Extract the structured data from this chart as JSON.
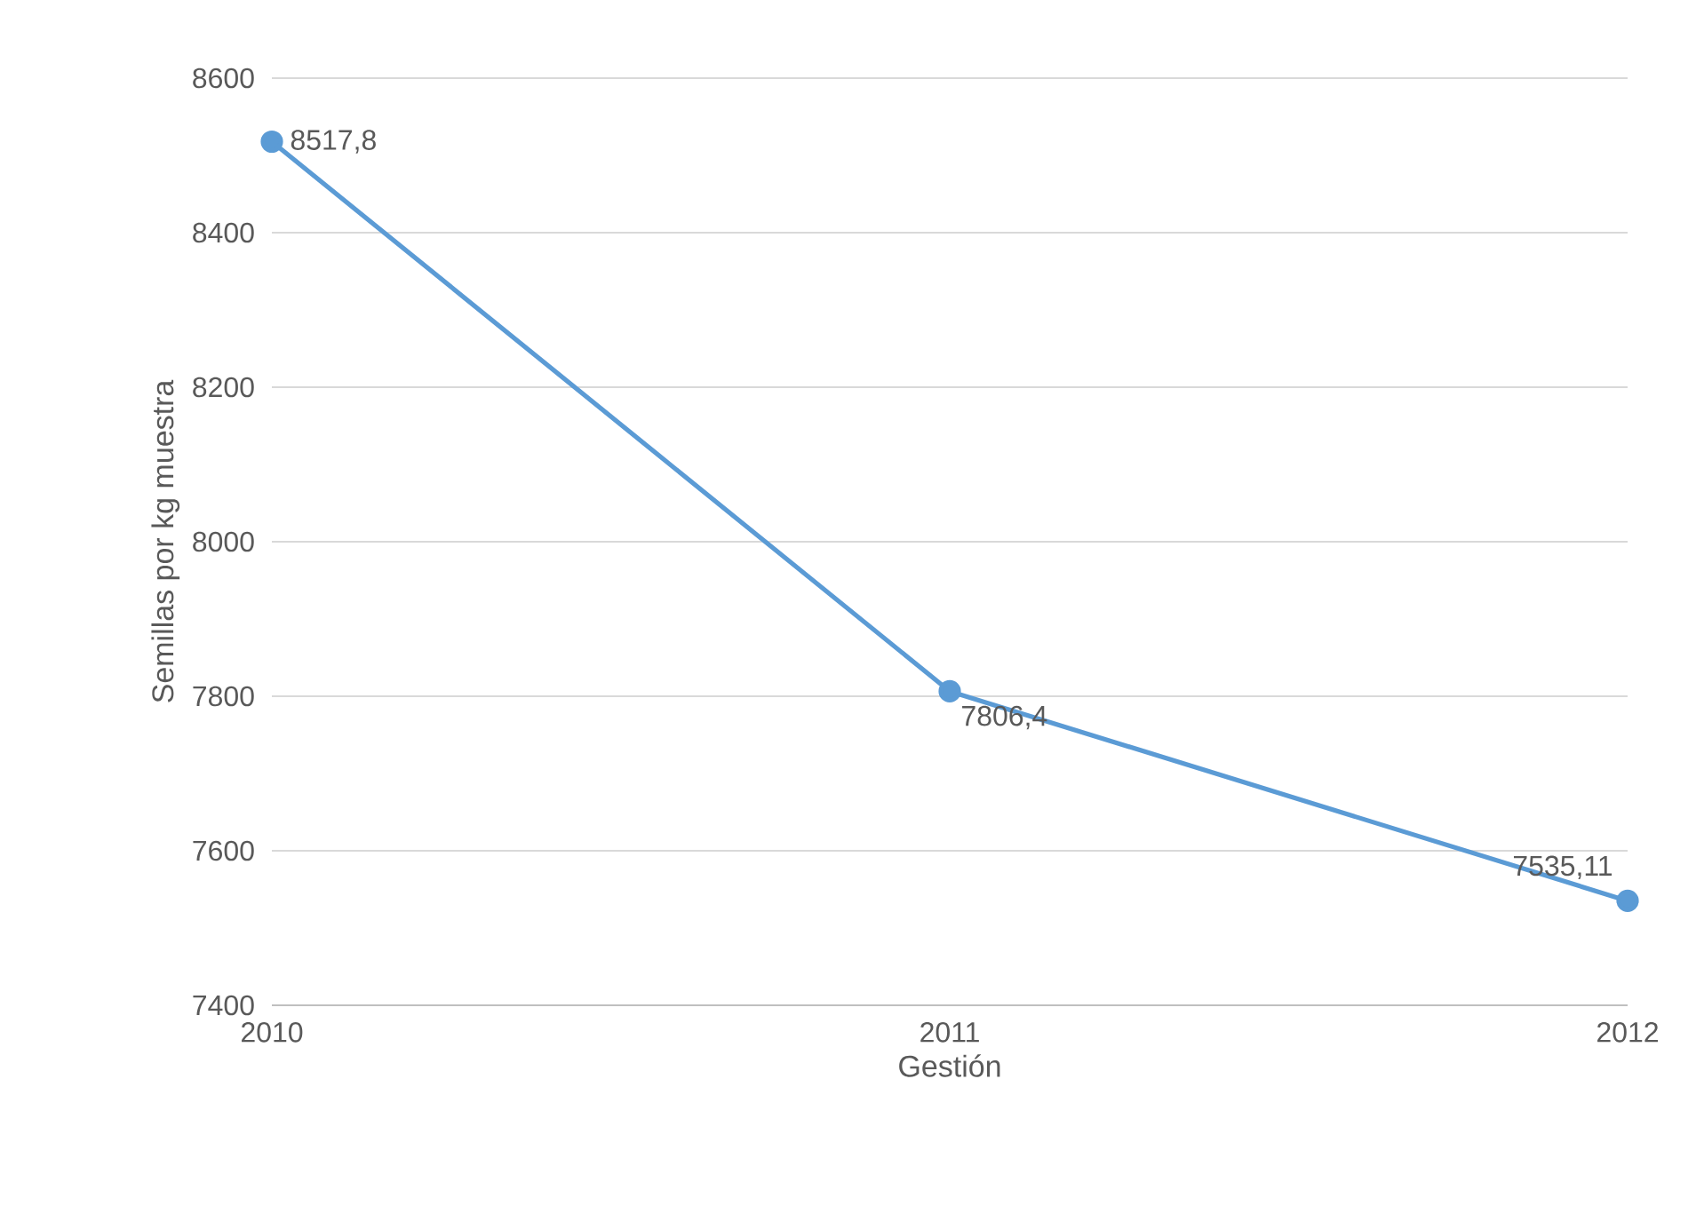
{
  "chart_data": {
    "type": "line",
    "xlabel": "Gestión",
    "ylabel": "Semillas por kg muestra",
    "x": [
      2010,
      2011,
      2012
    ],
    "series": [
      {
        "color": "#5b9bd5",
        "values": [
          8517.8,
          7806.4,
          7535.11
        ],
        "value_labels": [
          "8517,8",
          "7806,4",
          "7535,11"
        ]
      }
    ],
    "xlim": [
      2010,
      2012
    ],
    "xticks": [
      2010,
      2011,
      2012
    ],
    "ylim": [
      7400,
      8600
    ],
    "yticks": [
      7400,
      7600,
      7800,
      8000,
      8200,
      8400,
      8600
    ],
    "grid": "y",
    "marker": "circle",
    "line_style": "solid"
  }
}
